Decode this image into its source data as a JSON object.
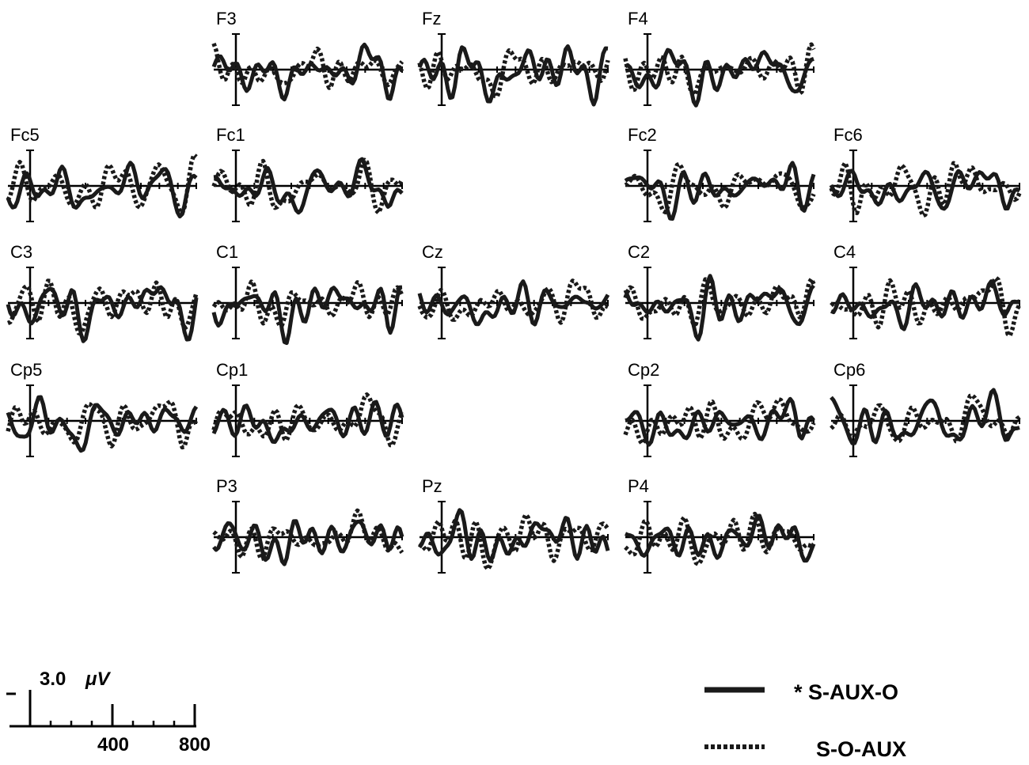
{
  "chart_data": {
    "type": "line",
    "series": [
      {
        "name": "* S-AUX-O",
        "style": "solid"
      },
      {
        "name": "S-O-AUX",
        "style": "dotted"
      }
    ],
    "x_range": [
      -100,
      900
    ],
    "y_range": [
      -3.0,
      3.0
    ],
    "panels": [
      {
        "name": "F3"
      },
      {
        "name": "Fz"
      },
      {
        "name": "F4"
      },
      {
        "name": "Fc5"
      },
      {
        "name": "Fc1"
      },
      {
        "name": "Fc2"
      },
      {
        "name": "Fc6"
      },
      {
        "name": "C3"
      },
      {
        "name": "C1"
      },
      {
        "name": "Cz"
      },
      {
        "name": "C2"
      },
      {
        "name": "C4"
      },
      {
        "name": "Cp5"
      },
      {
        "name": "Cp1"
      },
      {
        "name": "Cp2"
      },
      {
        "name": "Cp6"
      },
      {
        "name": "P3"
      },
      {
        "name": "Pz"
      },
      {
        "name": "P4"
      }
    ],
    "scale_bar": {
      "amplitude_label": "3.0",
      "unit_label": "μV",
      "tick_labels": [
        "400",
        "800"
      ]
    }
  }
}
